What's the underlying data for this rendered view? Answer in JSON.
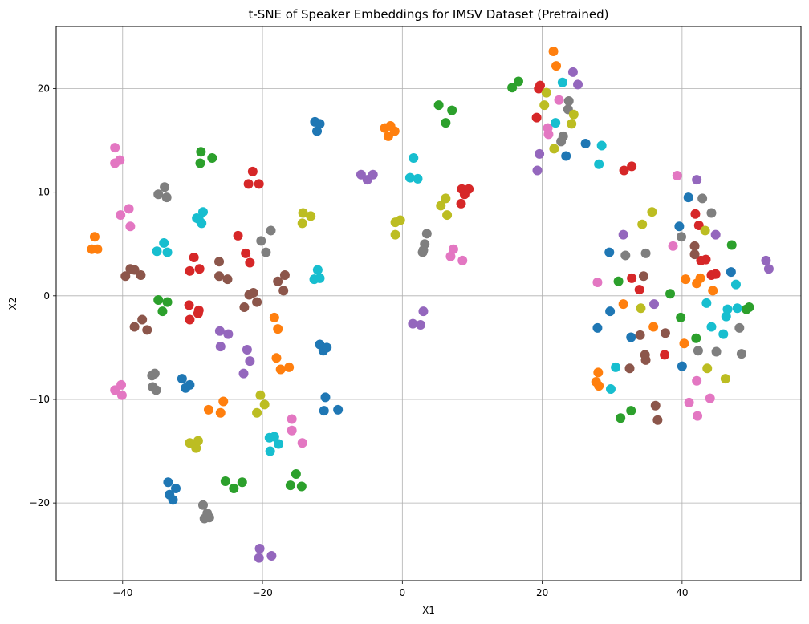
{
  "chart_data": {
    "type": "scatter",
    "title": "t-SNE of Speaker Embeddings for IMSV Dataset (Pretrained)",
    "xlabel": "X1",
    "ylabel": "X2",
    "xlim": [
      -49.5,
      57
    ],
    "ylim": [
      -27.5,
      26
    ],
    "xticks": [
      -40,
      -20,
      0,
      20,
      40
    ],
    "yticks": [
      -20,
      -10,
      0,
      10,
      20
    ],
    "grid": true,
    "legend": "none",
    "palette": [
      "#1f77b4",
      "#ff7f0e",
      "#2ca02c",
      "#d62728",
      "#9467bd",
      "#8c564b",
      "#e377c2",
      "#7f7f7f",
      "#bcbd22",
      "#17becf"
    ],
    "series": [
      {
        "color": "#1f77b4",
        "points": [
          [
            -12.5,
            16.8
          ],
          [
            -12.2,
            15.9
          ],
          [
            -11.8,
            16.6
          ],
          [
            -11.8,
            -4.7
          ],
          [
            -11.3,
            -5.3
          ],
          [
            -10.8,
            -5.0
          ],
          [
            -11.2,
            -11.1
          ],
          [
            -11.0,
            -9.8
          ],
          [
            -9.2,
            -11.0
          ],
          [
            -31.5,
            -8.0
          ],
          [
            -31.0,
            -8.9
          ],
          [
            -30.4,
            -8.6
          ],
          [
            -33.5,
            -18.0
          ],
          [
            -33.3,
            -19.2
          ],
          [
            -32.4,
            -18.6
          ],
          [
            -32.8,
            -19.7
          ],
          [
            26.2,
            14.7
          ],
          [
            23.4,
            13.5
          ],
          [
            29.6,
            4.2
          ],
          [
            29.7,
            -1.5
          ],
          [
            27.9,
            -3.1
          ],
          [
            32.7,
            -4.0
          ],
          [
            39.6,
            6.7
          ],
          [
            40.9,
            9.5
          ],
          [
            40.0,
            -6.8
          ],
          [
            47.0,
            2.3
          ]
        ]
      },
      {
        "color": "#ff7f0e",
        "points": [
          [
            -44.4,
            4.5
          ],
          [
            -44.0,
            5.7
          ],
          [
            -43.6,
            4.5
          ],
          [
            -2.5,
            16.2
          ],
          [
            -2.0,
            15.4
          ],
          [
            -1.7,
            16.4
          ],
          [
            -1.1,
            15.9
          ],
          [
            -18.3,
            -2.1
          ],
          [
            -17.8,
            -3.2
          ],
          [
            -18.0,
            -6.0
          ],
          [
            -17.4,
            -7.1
          ],
          [
            -16.2,
            -6.9
          ],
          [
            -27.7,
            -11.0
          ],
          [
            -26.0,
            -11.3
          ],
          [
            -25.6,
            -10.2
          ],
          [
            21.6,
            23.6
          ],
          [
            22.0,
            22.2
          ],
          [
            27.7,
            -8.3
          ],
          [
            28.1,
            -8.7
          ],
          [
            28.0,
            -7.4
          ],
          [
            31.6,
            -0.8
          ],
          [
            35.9,
            -3.0
          ],
          [
            40.3,
            -4.6
          ],
          [
            40.5,
            1.6
          ],
          [
            42.1,
            1.2
          ],
          [
            42.6,
            1.7
          ],
          [
            44.4,
            0.5
          ]
        ]
      },
      {
        "color": "#2ca02c",
        "points": [
          [
            -28.8,
            13.9
          ],
          [
            -27.2,
            13.3
          ],
          [
            -28.9,
            12.8
          ],
          [
            -34.9,
            -0.4
          ],
          [
            -34.3,
            -1.5
          ],
          [
            -33.6,
            -0.6
          ],
          [
            -25.3,
            -17.9
          ],
          [
            -24.1,
            -18.6
          ],
          [
            -22.9,
            -18.0
          ],
          [
            -16.0,
            -18.3
          ],
          [
            -15.2,
            -17.2
          ],
          [
            -14.4,
            -18.4
          ],
          [
            15.7,
            20.1
          ],
          [
            16.6,
            20.7
          ],
          [
            5.2,
            18.4
          ],
          [
            6.2,
            16.7
          ],
          [
            7.1,
            17.9
          ],
          [
            30.9,
            1.4
          ],
          [
            31.2,
            -11.8
          ],
          [
            32.7,
            -11.1
          ],
          [
            38.3,
            0.2
          ],
          [
            39.8,
            -2.1
          ],
          [
            42.0,
            -4.1
          ],
          [
            47.1,
            4.9
          ],
          [
            49.2,
            -1.3
          ],
          [
            49.6,
            -1.1
          ]
        ]
      },
      {
        "color": "#d62728",
        "points": [
          [
            -21.4,
            12.0
          ],
          [
            -20.5,
            10.8
          ],
          [
            -22.0,
            10.8
          ],
          [
            -23.5,
            5.8
          ],
          [
            -22.4,
            4.1
          ],
          [
            -21.8,
            3.2
          ],
          [
            -29.8,
            3.7
          ],
          [
            -29.0,
            2.6
          ],
          [
            -30.4,
            2.4
          ],
          [
            -29.2,
            -1.7
          ],
          [
            -29.1,
            -1.4
          ],
          [
            -30.4,
            -2.3
          ],
          [
            -30.5,
            -0.9
          ],
          [
            8.5,
            10.3
          ],
          [
            8.9,
            9.8
          ],
          [
            9.5,
            10.3
          ],
          [
            8.4,
            8.9
          ],
          [
            19.2,
            17.2
          ],
          [
            19.5,
            20.0
          ],
          [
            19.7,
            20.3
          ],
          [
            31.7,
            12.1
          ],
          [
            32.8,
            12.5
          ],
          [
            32.8,
            1.7
          ],
          [
            33.9,
            0.6
          ],
          [
            37.5,
            -5.7
          ],
          [
            41.9,
            7.9
          ],
          [
            42.4,
            6.8
          ],
          [
            42.7,
            3.4
          ],
          [
            43.4,
            3.5
          ],
          [
            44.2,
            2.0
          ],
          [
            44.8,
            2.1
          ]
        ]
      },
      {
        "color": "#9467bd",
        "points": [
          [
            -5.9,
            11.7
          ],
          [
            -5.0,
            11.2
          ],
          [
            -4.2,
            11.7
          ],
          [
            1.5,
            -2.7
          ],
          [
            2.6,
            -2.8
          ],
          [
            3.0,
            -1.5
          ],
          [
            -26.1,
            -3.4
          ],
          [
            -24.9,
            -3.7
          ],
          [
            -26.0,
            -4.9
          ],
          [
            -22.2,
            -5.2
          ],
          [
            -21.8,
            -6.3
          ],
          [
            -22.7,
            -7.5
          ],
          [
            -20.4,
            -24.4
          ],
          [
            -20.5,
            -25.3
          ],
          [
            -18.7,
            -25.1
          ],
          [
            19.6,
            13.7
          ],
          [
            19.3,
            12.1
          ],
          [
            24.4,
            21.6
          ],
          [
            25.1,
            20.4
          ],
          [
            31.6,
            5.9
          ],
          [
            36.0,
            -0.8
          ],
          [
            42.1,
            11.2
          ],
          [
            44.8,
            5.9
          ],
          [
            52.0,
            3.4
          ],
          [
            52.4,
            2.6
          ]
        ]
      },
      {
        "color": "#8c564b",
        "points": [
          [
            -38.9,
            2.6
          ],
          [
            -39.6,
            1.9
          ],
          [
            -38.3,
            2.5
          ],
          [
            -37.4,
            2.0
          ],
          [
            -38.3,
            -3.0
          ],
          [
            -37.2,
            -2.3
          ],
          [
            -36.5,
            -3.3
          ],
          [
            -26.2,
            3.3
          ],
          [
            -26.2,
            1.9
          ],
          [
            -25.0,
            1.6
          ],
          [
            -22.6,
            -1.1
          ],
          [
            -21.9,
            0.1
          ],
          [
            -20.8,
            -0.6
          ],
          [
            -21.3,
            0.3
          ],
          [
            -17.8,
            1.4
          ],
          [
            -16.8,
            2.0
          ],
          [
            -17.0,
            0.5
          ],
          [
            32.5,
            -7.0
          ],
          [
            34.0,
            -3.8
          ],
          [
            34.7,
            -5.7
          ],
          [
            34.8,
            -6.2
          ],
          [
            34.5,
            1.9
          ],
          [
            36.2,
            -10.6
          ],
          [
            36.5,
            -12.0
          ],
          [
            37.6,
            -3.6
          ],
          [
            41.8,
            4.8
          ],
          [
            41.8,
            4.0
          ]
        ]
      },
      {
        "color": "#e377c2",
        "points": [
          [
            -41.1,
            14.3
          ],
          [
            -40.4,
            13.1
          ],
          [
            -41.1,
            12.8
          ],
          [
            -40.3,
            7.8
          ],
          [
            -39.1,
            8.4
          ],
          [
            -38.9,
            6.7
          ],
          [
            -40.2,
            -8.6
          ],
          [
            -41.1,
            -9.1
          ],
          [
            -40.1,
            -9.6
          ],
          [
            -15.8,
            -13.0
          ],
          [
            -15.8,
            -11.9
          ],
          [
            -14.3,
            -14.2
          ],
          [
            7.3,
            4.5
          ],
          [
            6.9,
            3.8
          ],
          [
            8.6,
            3.4
          ],
          [
            20.8,
            16.2
          ],
          [
            20.9,
            15.6
          ],
          [
            22.4,
            18.9
          ],
          [
            27.9,
            1.3
          ],
          [
            38.7,
            4.8
          ],
          [
            39.3,
            11.6
          ],
          [
            41.0,
            -10.3
          ],
          [
            42.2,
            -11.6
          ],
          [
            42.1,
            -8.2
          ],
          [
            44.0,
            -9.9
          ]
        ]
      },
      {
        "color": "#7f7f7f",
        "points": [
          [
            -34.9,
            9.8
          ],
          [
            -34.0,
            10.5
          ],
          [
            -33.7,
            9.5
          ],
          [
            -35.8,
            -7.7
          ],
          [
            -35.7,
            -8.8
          ],
          [
            -35.2,
            -9.1
          ],
          [
            -35.4,
            -7.5
          ],
          [
            -20.2,
            5.3
          ],
          [
            -19.5,
            4.2
          ],
          [
            -18.8,
            6.3
          ],
          [
            -28.5,
            -20.2
          ],
          [
            -27.9,
            -21.0
          ],
          [
            -28.3,
            -21.5
          ],
          [
            -27.6,
            -21.4
          ],
          [
            2.9,
            4.2
          ],
          [
            3.2,
            5.0
          ],
          [
            3.5,
            6.0
          ],
          [
            3.0,
            4.4
          ],
          [
            22.7,
            14.9
          ],
          [
            23.7,
            18.0
          ],
          [
            23.8,
            18.8
          ],
          [
            23.0,
            15.4
          ],
          [
            31.9,
            3.9
          ],
          [
            34.8,
            4.1
          ],
          [
            39.9,
            5.7
          ],
          [
            42.3,
            -5.3
          ],
          [
            42.9,
            9.4
          ],
          [
            44.2,
            8.0
          ],
          [
            44.9,
            -5.4
          ],
          [
            48.2,
            -3.1
          ],
          [
            48.5,
            -5.6
          ]
        ]
      },
      {
        "color": "#bcbd22",
        "points": [
          [
            -14.2,
            8.0
          ],
          [
            -13.1,
            7.7
          ],
          [
            -14.3,
            7.0
          ],
          [
            -30.4,
            -14.2
          ],
          [
            -29.5,
            -14.7
          ],
          [
            -29.2,
            -14.0
          ],
          [
            -20.3,
            -9.6
          ],
          [
            -19.7,
            -10.5
          ],
          [
            -20.8,
            -11.3
          ],
          [
            -1.0,
            7.1
          ],
          [
            -0.3,
            7.3
          ],
          [
            -1.0,
            5.9
          ],
          [
            5.5,
            8.7
          ],
          [
            6.2,
            9.4
          ],
          [
            6.4,
            7.8
          ],
          [
            20.3,
            18.4
          ],
          [
            20.6,
            19.6
          ],
          [
            21.7,
            14.2
          ],
          [
            24.2,
            16.6
          ],
          [
            24.5,
            17.5
          ],
          [
            34.1,
            -1.2
          ],
          [
            34.3,
            6.9
          ],
          [
            35.7,
            8.1
          ],
          [
            43.3,
            6.3
          ],
          [
            43.6,
            -7.0
          ],
          [
            46.2,
            -8.0
          ]
        ]
      },
      {
        "color": "#17becf",
        "points": [
          [
            -34.1,
            5.1
          ],
          [
            -35.1,
            4.3
          ],
          [
            -33.6,
            4.2
          ],
          [
            -29.4,
            7.5
          ],
          [
            -28.5,
            8.1
          ],
          [
            -28.7,
            7.0
          ],
          [
            -29.1,
            7.4
          ],
          [
            -12.6,
            1.6
          ],
          [
            -12.1,
            2.5
          ],
          [
            -11.8,
            1.7
          ],
          [
            -19.0,
            -13.7
          ],
          [
            -18.3,
            -13.6
          ],
          [
            -17.7,
            -14.3
          ],
          [
            -18.9,
            -15.0
          ],
          [
            1.6,
            13.3
          ],
          [
            1.1,
            11.4
          ],
          [
            2.2,
            11.3
          ],
          [
            22.9,
            20.6
          ],
          [
            21.9,
            16.7
          ],
          [
            28.5,
            14.5
          ],
          [
            28.1,
            12.7
          ],
          [
            30.5,
            -6.9
          ],
          [
            29.8,
            -9.0
          ],
          [
            43.5,
            -0.7
          ],
          [
            44.2,
            -3.0
          ],
          [
            45.9,
            -3.7
          ],
          [
            46.5,
            -1.3
          ],
          [
            46.3,
            -2.0
          ],
          [
            47.7,
            1.1
          ],
          [
            47.9,
            -1.2
          ]
        ]
      }
    ]
  }
}
